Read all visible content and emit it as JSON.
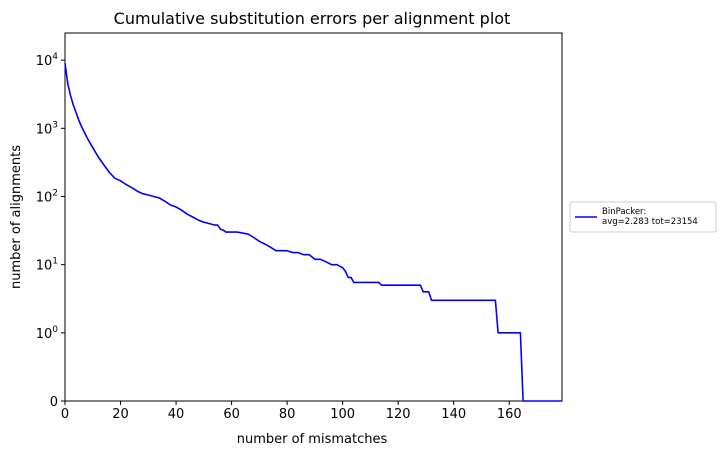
{
  "chart_data": {
    "type": "line",
    "title": "Cumulative substitution errors per alignment plot",
    "xlabel": "number of mismatches",
    "ylabel": "number of alignments",
    "xlim": [
      0,
      179
    ],
    "y_scale": "symlog",
    "y_max": 25000,
    "x_ticks": [
      0,
      20,
      40,
      60,
      80,
      100,
      120,
      140,
      160
    ],
    "y_ticks": [
      {
        "value": 0,
        "base": "0",
        "exp": ""
      },
      {
        "value": 1,
        "base": "10",
        "exp": "0"
      },
      {
        "value": 10,
        "base": "10",
        "exp": "1"
      },
      {
        "value": 100,
        "base": "10",
        "exp": "2"
      },
      {
        "value": 1000,
        "base": "10",
        "exp": "3"
      },
      {
        "value": 10000,
        "base": "10",
        "exp": "4"
      }
    ],
    "grid": false,
    "legend_position": "outside-right",
    "series": [
      {
        "name": "BinPacker:\navg=2.283 tot=23154",
        "legend_lines": [
          "BinPacker:",
          "avg=2.283 tot=23154"
        ],
        "color": "#0000ff",
        "x": [
          0,
          1,
          2,
          3,
          4,
          5,
          6,
          7,
          8,
          10,
          12,
          14,
          16,
          18,
          20,
          22,
          24,
          26,
          28,
          30,
          32,
          34,
          36,
          38,
          40,
          42,
          44,
          46,
          48,
          50,
          52,
          54,
          55,
          56,
          57,
          58,
          60,
          62,
          64,
          66,
          68,
          70,
          72,
          74,
          76,
          78,
          80,
          82,
          84,
          86,
          88,
          90,
          92,
          94,
          96,
          98,
          100,
          101,
          102,
          103,
          104,
          106,
          108,
          110,
          112,
          113,
          114,
          116,
          118,
          120,
          122,
          124,
          126,
          128,
          129,
          130,
          131,
          132,
          134,
          136,
          140,
          145,
          150,
          154,
          155,
          156,
          160,
          163,
          164,
          165,
          170,
          179
        ],
        "y": [
          9000,
          4500,
          3000,
          2200,
          1700,
          1300,
          1050,
          870,
          720,
          520,
          380,
          290,
          225,
          185,
          170,
          150,
          135,
          120,
          110,
          105,
          100,
          95,
          85,
          75,
          70,
          63,
          55,
          50,
          45,
          42,
          40,
          38,
          38,
          33,
          32,
          30,
          30,
          30,
          29,
          28,
          25,
          22,
          20,
          18,
          16,
          16,
          16,
          15,
          15,
          14,
          14,
          12,
          12,
          11,
          10,
          10,
          9,
          8,
          6.5,
          6.5,
          5.5,
          5.5,
          5.5,
          5.5,
          5.5,
          5.5,
          5,
          5,
          5,
          5,
          5,
          5,
          5,
          5,
          4,
          4,
          4,
          3,
          3,
          3,
          3,
          3,
          3,
          3,
          3,
          1,
          1,
          1,
          1,
          0,
          0,
          0
        ]
      }
    ]
  }
}
